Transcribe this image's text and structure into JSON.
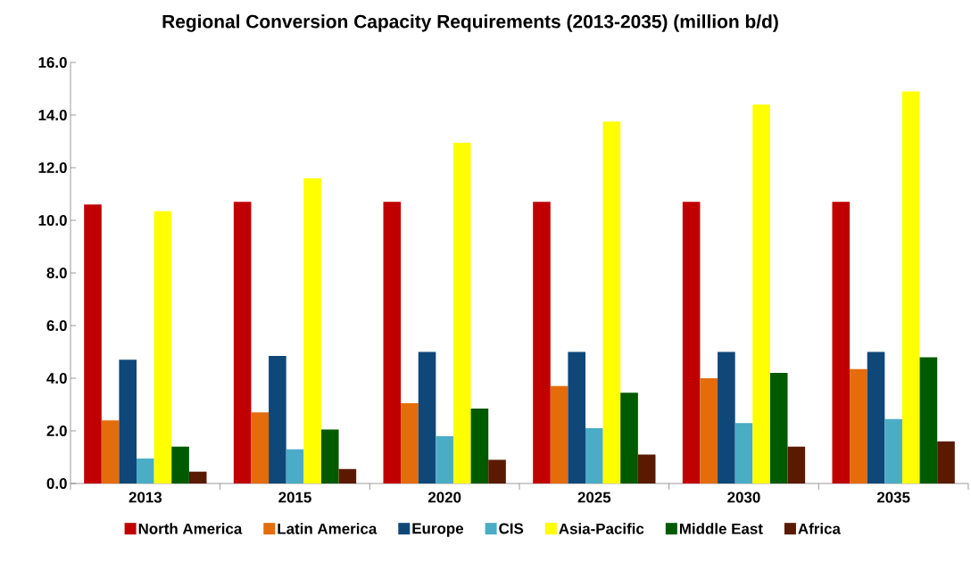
{
  "chart_data": {
    "type": "bar",
    "title": "Regional Conversion Capacity Requirements (2013-2035) (million b/d)",
    "categories": [
      "2013",
      "2015",
      "2020",
      "2025",
      "2030",
      "2035"
    ],
    "series": [
      {
        "name": "North America",
        "color": "#c00000",
        "values": [
          10.6,
          10.7,
          10.7,
          10.7,
          10.7,
          10.7
        ]
      },
      {
        "name": "Latin America",
        "color": "#e46c0a",
        "values": [
          2.4,
          2.7,
          3.05,
          3.7,
          4.0,
          4.35
        ]
      },
      {
        "name": "Europe",
        "color": "#0f4779",
        "values": [
          4.7,
          4.85,
          5.0,
          5.0,
          5.0,
          5.0
        ]
      },
      {
        "name": "CIS",
        "color": "#4bacc6",
        "values": [
          0.95,
          1.3,
          1.8,
          2.1,
          2.3,
          2.45
        ]
      },
      {
        "name": "Asia-Pacific",
        "color": "#ffff00",
        "values": [
          10.35,
          11.6,
          12.95,
          13.75,
          14.4,
          14.9
        ]
      },
      {
        "name": "Middle East",
        "color": "#005a00",
        "values": [
          1.4,
          2.05,
          2.85,
          3.45,
          4.2,
          4.8
        ]
      },
      {
        "name": "Africa",
        "color": "#5a1a00",
        "values": [
          0.45,
          0.55,
          0.9,
          1.1,
          1.4,
          1.6
        ]
      }
    ],
    "ylim": [
      0,
      16
    ],
    "yticks": [
      {
        "value": 0,
        "label": "0.0"
      },
      {
        "value": 2,
        "label": "2.0"
      },
      {
        "value": 4,
        "label": "4.0"
      },
      {
        "value": 6,
        "label": "6.0"
      },
      {
        "value": 8,
        "label": "8.0"
      },
      {
        "value": 10,
        "label": "10.0"
      },
      {
        "value": 12,
        "label": "12.0"
      },
      {
        "value": 14,
        "label": "14.0"
      },
      {
        "value": 16,
        "label": "16.0"
      }
    ],
    "grid": false,
    "legend": "bottom"
  }
}
